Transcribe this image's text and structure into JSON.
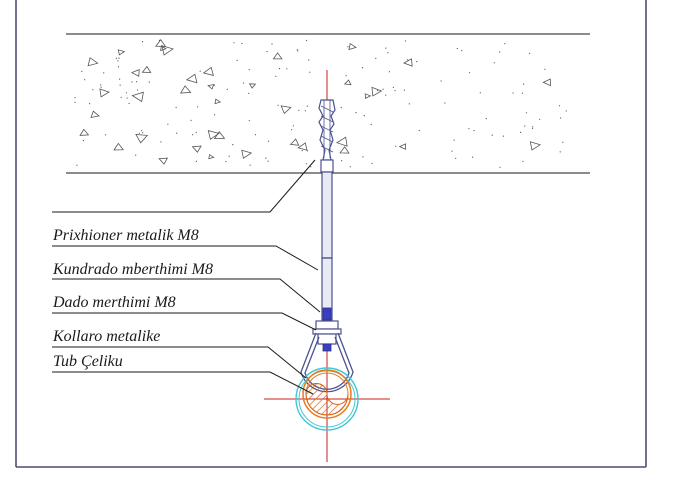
{
  "labels": {
    "anchor": "Prixhioner metalik M8",
    "threaded_rod": "Kundrado mberthimi M8",
    "nut": "Dado merthimi M8",
    "collar": "Kollaro metalike",
    "pipe": "Tub Çeliku"
  },
  "colors": {
    "frame": "#4d4d73",
    "line": "#1a1a1a",
    "rod": "#4a5290",
    "rod_fill": "#e8eaf4",
    "centerline": "#cc1f1f",
    "pipe_outer": "#e87a1e",
    "pipe_inner_hatch": "#d9661a",
    "insulation": "#3fc7d8",
    "nut_fill": "#3a3fc0",
    "concrete_marks": "#555555"
  },
  "icons": {
    "anchor": "wedge-anchor-icon",
    "pipe": "hatched-pipe-section-icon"
  }
}
